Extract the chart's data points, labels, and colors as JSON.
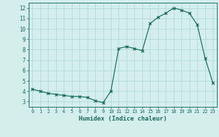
{
  "x": [
    0,
    1,
    2,
    3,
    4,
    5,
    6,
    7,
    8,
    9,
    10,
    11,
    12,
    13,
    14,
    15,
    16,
    17,
    18,
    19,
    20,
    21,
    22,
    23
  ],
  "y": [
    4.2,
    4.0,
    3.8,
    3.7,
    3.6,
    3.5,
    3.5,
    3.4,
    3.1,
    2.9,
    4.0,
    8.1,
    8.3,
    8.1,
    7.9,
    10.5,
    11.1,
    11.5,
    12.0,
    11.8,
    11.5,
    10.4,
    7.2,
    4.8
  ],
  "xlabel": "Humidex (Indice chaleur)",
  "xlim": [
    -0.5,
    23.5
  ],
  "ylim": [
    2.5,
    12.5
  ],
  "yticks": [
    3,
    4,
    5,
    6,
    7,
    8,
    9,
    10,
    11,
    12
  ],
  "xticks": [
    0,
    1,
    2,
    3,
    4,
    5,
    6,
    7,
    8,
    9,
    10,
    11,
    12,
    13,
    14,
    15,
    16,
    17,
    18,
    19,
    20,
    21,
    22,
    23
  ],
  "line_color": "#1a6b5a",
  "marker": "x",
  "bg_color": "#d4eeeb",
  "grid_color": "#a8d8d4",
  "axis_color": "#1a6b5a",
  "label_color": "#1a6b5a",
  "font_family": "monospace"
}
